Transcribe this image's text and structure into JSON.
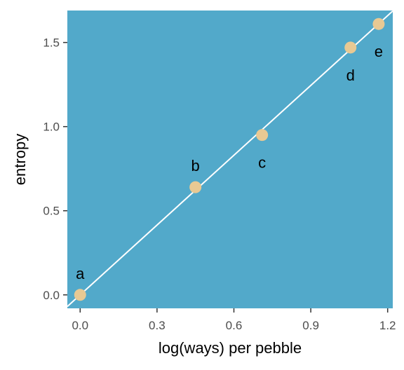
{
  "chart_data": {
    "type": "scatter",
    "title": "",
    "xlabel": "log(ways) per pebble",
    "ylabel": "entropy",
    "xlim": [
      -0.05,
      1.22
    ],
    "ylim": [
      -0.08,
      1.69
    ],
    "x_ticks": [
      0.0,
      0.3,
      0.6,
      0.9,
      1.2
    ],
    "x_tick_labels": [
      "0.0",
      "0.3",
      "0.6",
      "0.9",
      "1.2"
    ],
    "y_ticks": [
      0.0,
      0.5,
      1.0,
      1.5
    ],
    "y_tick_labels": [
      "0.0",
      "0.5",
      "1.0",
      "1.5"
    ],
    "grid": false,
    "points": [
      {
        "label": "a",
        "x": 0.0,
        "y": 0.0,
        "label_pos": "above"
      },
      {
        "label": "b",
        "x": 0.45,
        "y": 0.64,
        "label_pos": "above"
      },
      {
        "label": "c",
        "x": 0.71,
        "y": 0.95,
        "label_pos": "below"
      },
      {
        "label": "d",
        "x": 1.055,
        "y": 1.47,
        "label_pos": "below"
      },
      {
        "label": "e",
        "x": 1.165,
        "y": 1.61,
        "label_pos": "below"
      }
    ],
    "fit_line": {
      "intercept": 0.0,
      "slope": 1.383
    },
    "colors": {
      "panel": "#52a9ca",
      "point": "#e8c993",
      "line": "#ffffff"
    }
  }
}
